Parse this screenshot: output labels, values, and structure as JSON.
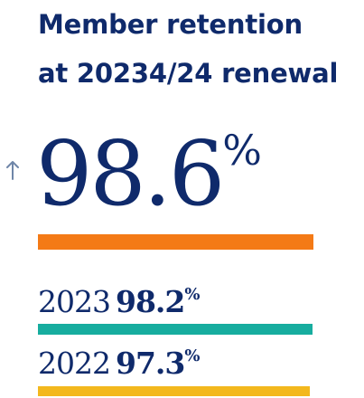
{
  "chart_data": {
    "type": "bar",
    "title_lines": [
      "Member retention",
      "at 20234/24 renewal"
    ],
    "trend_icon": "arrow-up-icon",
    "current": {
      "value": "98.6",
      "unit": "%"
    },
    "history": [
      {
        "year": "2023",
        "value": "98.2",
        "unit": "%"
      },
      {
        "year": "2022",
        "value": "97.3",
        "unit": "%"
      }
    ],
    "colors": {
      "text": "#0f2a6b",
      "arrow": "#6f86a8",
      "current_bar": "#f47a16",
      "bar_2023": "#17ad9f",
      "bar_2022": "#f3b81d"
    }
  }
}
